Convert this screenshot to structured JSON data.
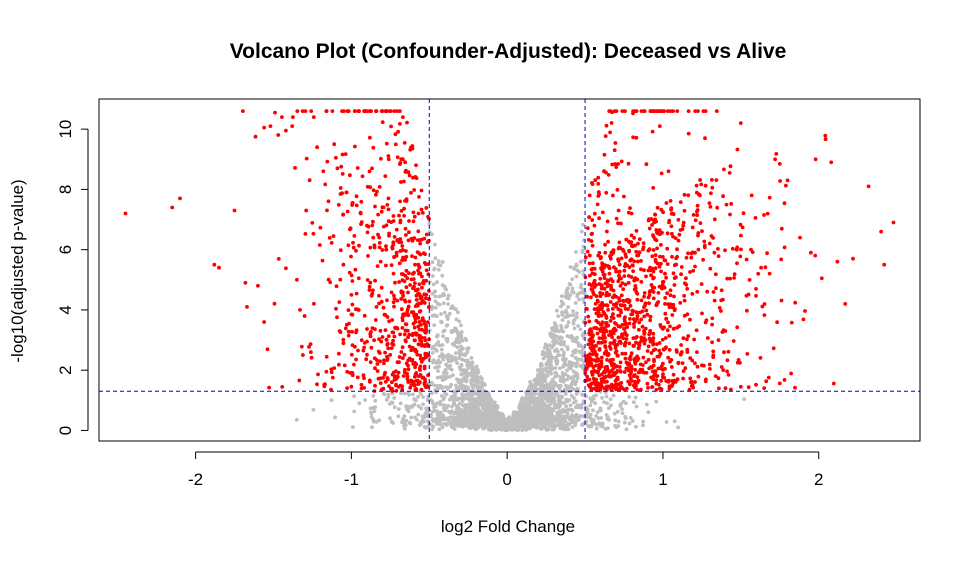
{
  "chart_data": {
    "type": "scatter",
    "title": "Volcano Plot (Confounder-Adjusted): Deceased vs Alive",
    "xlabel": "log2 Fold Change",
    "ylabel": "-log10(adjusted p-value)",
    "xlim": [
      -2.62,
      2.65
    ],
    "ylim": [
      -0.35,
      11.0
    ],
    "x_ticks": [
      -2,
      -1,
      0,
      1,
      2
    ],
    "x_tick_labels": [
      "-2",
      "-1",
      "0",
      "1",
      "2"
    ],
    "y_ticks": [
      0,
      2,
      4,
      6,
      8,
      10
    ],
    "y_tick_labels": [
      "0",
      "2",
      "4",
      "6",
      "8",
      "10"
    ],
    "thresholds": {
      "log2fc": [
        -0.5,
        0.5
      ],
      "neg_log10_p": 1.3,
      "line_style": "dashed",
      "line_color": "#0000cc"
    },
    "colors": {
      "significant": "#ff0000",
      "not_significant": "#bebebe"
    },
    "grid": false,
    "legend": "none",
    "significant_points": [
      [
        -2.45,
        7.2
      ],
      [
        -2.15,
        7.4
      ],
      [
        -2.1,
        7.7
      ],
      [
        -1.75,
        7.3
      ],
      [
        -1.88,
        5.5
      ],
      [
        -1.85,
        5.4
      ],
      [
        -1.68,
        4.9
      ],
      [
        -1.67,
        4.1
      ],
      [
        -1.6,
        4.8
      ],
      [
        -1.56,
        3.6
      ],
      [
        -1.52,
        10.1
      ],
      [
        -1.56,
        10.05
      ],
      [
        -1.49,
        10.55
      ],
      [
        -1.42,
        9.95
      ],
      [
        -1.38,
        10.1
      ],
      [
        -1.35,
        5.0
      ],
      [
        -1.33,
        4.0
      ],
      [
        -1.3,
        3.8
      ],
      [
        -1.29,
        7.3
      ],
      [
        -1.26,
        2.6
      ],
      [
        -1.22,
        9.4
      ],
      [
        -1.18,
        8.6
      ],
      [
        -1.16,
        1.95
      ],
      [
        -1.11,
        9.5
      ],
      [
        -1.09,
        8.7
      ],
      [
        -1.03,
        7.9
      ],
      [
        -1.0,
        4.5
      ],
      [
        -0.94,
        7.2
      ],
      [
        -0.9,
        6.8
      ],
      [
        -0.86,
        6.4
      ],
      [
        -0.8,
        3.1
      ],
      [
        -0.76,
        9.0
      ],
      [
        -0.71,
        5.8
      ],
      [
        -0.67,
        2.4
      ],
      [
        -0.63,
        6.95
      ],
      [
        -0.59,
        3.6
      ],
      [
        -0.56,
        1.6
      ],
      [
        -0.53,
        2.8
      ],
      [
        0.53,
        1.5
      ],
      [
        0.56,
        6.8
      ],
      [
        0.6,
        3.3
      ],
      [
        0.63,
        5.9
      ],
      [
        0.69,
        9.3
      ],
      [
        0.73,
        2.9
      ],
      [
        0.78,
        4.9
      ],
      [
        0.84,
        6.2
      ],
      [
        0.9,
        1.55
      ],
      [
        0.95,
        7.0
      ],
      [
        0.98,
        10.1
      ],
      [
        1.02,
        3.7
      ],
      [
        1.1,
        6.3
      ],
      [
        1.18,
        1.6
      ],
      [
        1.22,
        4.6
      ],
      [
        1.27,
        9.7
      ],
      [
        1.33,
        5.9
      ],
      [
        1.4,
        3.3
      ],
      [
        1.5,
        10.2
      ],
      [
        1.57,
        7.8
      ],
      [
        1.63,
        5.4
      ],
      [
        1.72,
        9.0
      ],
      [
        1.8,
        8.3
      ],
      [
        1.88,
        6.4
      ],
      [
        1.95,
        5.9
      ],
      [
        2.08,
        8.9
      ],
      [
        2.12,
        5.6
      ],
      [
        2.17,
        4.2
      ],
      [
        2.22,
        5.7
      ],
      [
        2.32,
        8.1
      ],
      [
        2.42,
        5.5
      ],
      [
        2.48,
        6.9
      ],
      [
        2.4,
        6.6
      ],
      [
        1.98,
        9.0
      ]
    ]
  }
}
